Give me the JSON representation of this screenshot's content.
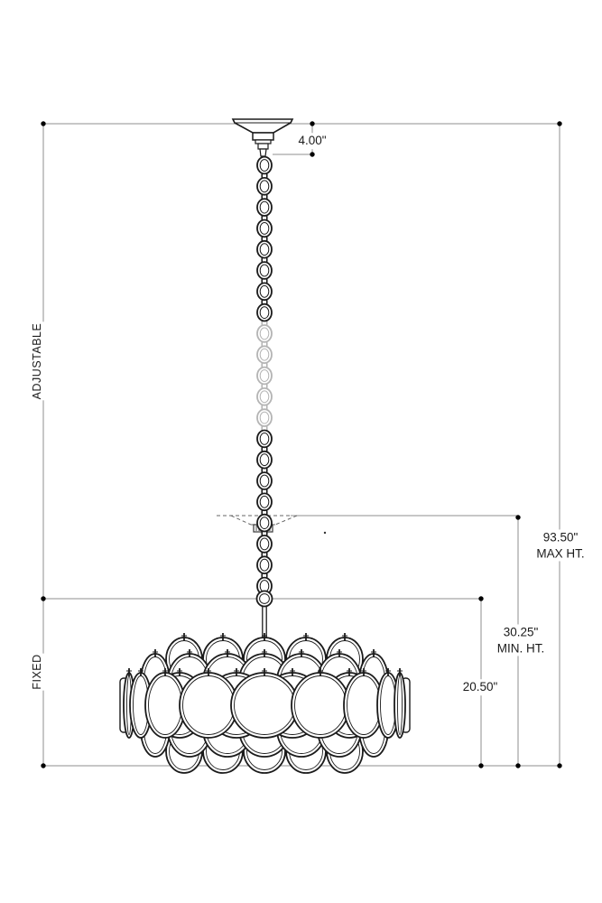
{
  "drawing": {
    "type": "chandelier-dimension-diagram"
  },
  "labels": {
    "adjustable": "ADJUSTABLE",
    "fixed": "FIXED"
  },
  "dimensions": {
    "canopy_height": "4.00\"",
    "max_height_value": "93.50\"",
    "max_height_caption": "MAX HT.",
    "min_height_value": "30.25\"",
    "min_height_caption": "MIN. HT.",
    "fixture_height": "20.50\""
  },
  "colors": {
    "ink": "#1b1b1b",
    "dimension_line": "#8f8f8f",
    "ghost_line": "#666666",
    "faded_ink": "#b4b4b4",
    "text": "#1b1b1b"
  }
}
